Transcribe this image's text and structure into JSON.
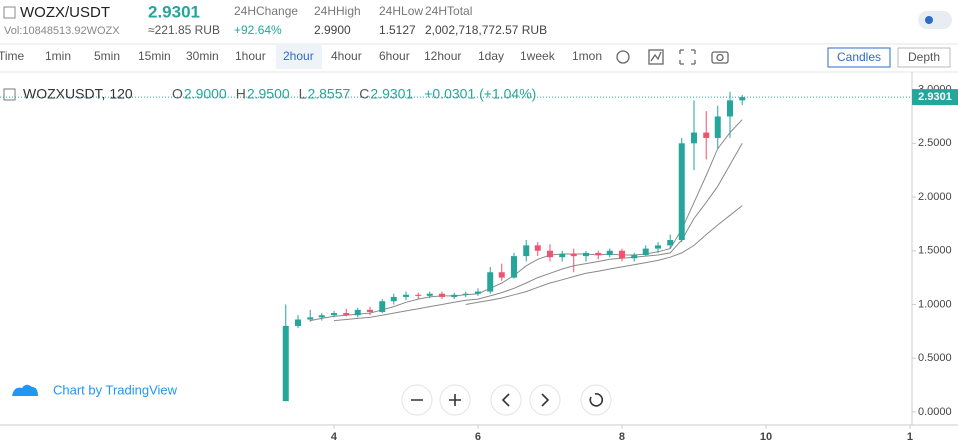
{
  "header": {
    "pair": "WOZX/USDT",
    "price": "2.9301",
    "volume": "Vol:10848513.92WOZX",
    "price_rub": "≈221.85 RUB",
    "stats": [
      {
        "label": "24HChange",
        "value": "+92.64%"
      },
      {
        "label": "24HHigh",
        "value": "2.9900"
      },
      {
        "label": "24HLow",
        "value": "1.5127"
      },
      {
        "label": "24HTotal",
        "value": "2,002,718,772.57 RUB"
      }
    ]
  },
  "toolbar": {
    "intervals": [
      "Time",
      "1min",
      "5min",
      "15min",
      "30min",
      "1hour",
      "2hour",
      "4hour",
      "6hour",
      "12hour",
      "1day",
      "1week",
      "1mon"
    ],
    "buttons": [
      "Candles",
      "Depth"
    ]
  },
  "chart_data": {
    "type": "candlestick",
    "legend": {
      "symbol": "WOZXUSDT, 120",
      "items": [
        {
          "key": "O",
          "value": "2.9000"
        },
        {
          "key": "H",
          "value": "2.9500"
        },
        {
          "key": "L",
          "value": "2.8557"
        },
        {
          "key": "C",
          "value": "2.9301"
        }
      ],
      "change": "+0.0301 (+1.04%)"
    },
    "up_color": "#26a69a",
    "down_color": "#ef5370",
    "x": [
      3.33,
      3.5,
      3.67,
      3.83,
      4,
      4.17,
      4.33,
      4.5,
      4.67,
      4.83,
      5,
      5.17,
      5.33,
      5.5,
      5.67,
      5.83,
      6,
      6.17,
      6.33,
      6.5,
      6.67,
      6.83,
      7,
      7.17,
      7.33,
      7.5,
      7.67,
      7.83,
      8,
      8.17,
      8.33,
      8.5,
      8.67,
      8.83,
      9,
      9.17,
      9.33,
      9.5,
      9.67
    ],
    "open": [
      0.1,
      0.8,
      0.86,
      0.88,
      0.9,
      0.92,
      0.9,
      0.95,
      0.93,
      1.03,
      1.07,
      1.09,
      1.08,
      1.1,
      1.07,
      1.09,
      1.1,
      1.12,
      1.3,
      1.25,
      1.45,
      1.55,
      1.5,
      1.44,
      1.47,
      1.45,
      1.48,
      1.46,
      1.5,
      1.43,
      1.46,
      1.52,
      1.55,
      1.6,
      2.5,
      2.6,
      2.55,
      2.75,
      2.9
    ],
    "high": [
      1.0,
      0.9,
      0.95,
      0.92,
      0.94,
      0.96,
      0.97,
      0.98,
      1.05,
      1.1,
      1.12,
      1.11,
      1.12,
      1.12,
      1.11,
      1.12,
      1.15,
      1.35,
      1.38,
      1.48,
      1.6,
      1.58,
      1.56,
      1.5,
      1.52,
      1.5,
      1.5,
      1.52,
      1.52,
      1.48,
      1.55,
      1.58,
      1.65,
      2.55,
      2.9,
      2.8,
      2.85,
      2.98,
      2.95
    ],
    "low": [
      0.1,
      0.78,
      0.84,
      0.85,
      0.88,
      0.89,
      0.88,
      0.9,
      0.92,
      1.0,
      1.04,
      1.05,
      1.06,
      1.05,
      1.05,
      1.07,
      1.08,
      1.1,
      1.22,
      1.24,
      1.4,
      1.45,
      1.4,
      1.4,
      1.3,
      1.4,
      1.42,
      1.44,
      1.4,
      1.4,
      1.45,
      1.48,
      1.52,
      1.58,
      2.25,
      2.35,
      2.45,
      2.55,
      2.8557
    ],
    "close": [
      0.8,
      0.86,
      0.88,
      0.9,
      0.92,
      0.9,
      0.95,
      0.93,
      1.03,
      1.07,
      1.09,
      1.08,
      1.1,
      1.07,
      1.09,
      1.1,
      1.12,
      1.3,
      1.25,
      1.45,
      1.55,
      1.5,
      1.44,
      1.47,
      1.45,
      1.48,
      1.46,
      1.5,
      1.43,
      1.46,
      1.52,
      1.55,
      1.6,
      2.5,
      2.6,
      2.55,
      2.75,
      2.9,
      2.9301
    ],
    "moving_averages": [
      {
        "color": "#8a8a8a",
        "values": [
          null,
          null,
          0.85,
          0.87,
          0.89,
          0.9,
          0.91,
          0.92,
          0.95,
          0.98,
          1.02,
          1.05,
          1.07,
          1.08,
          1.08,
          1.09,
          1.1,
          1.15,
          1.2,
          1.27,
          1.36,
          1.42,
          1.46,
          1.47,
          1.47,
          1.47,
          1.46,
          1.47,
          1.46,
          1.46,
          1.47,
          1.49,
          1.52,
          1.7,
          1.95,
          2.2,
          2.45,
          2.6,
          2.72
        ]
      },
      {
        "color": "#8a8a8a",
        "values": [
          null,
          null,
          null,
          null,
          0.85,
          0.86,
          0.87,
          0.88,
          0.9,
          0.92,
          0.94,
          0.96,
          0.98,
          1.0,
          1.02,
          1.04,
          1.05,
          1.08,
          1.11,
          1.15,
          1.2,
          1.25,
          1.29,
          1.33,
          1.36,
          1.38,
          1.4,
          1.42,
          1.43,
          1.44,
          1.45,
          1.46,
          1.48,
          1.6,
          1.8,
          1.95,
          2.1,
          2.3,
          2.5
        ]
      },
      {
        "color": "#8a8a8a",
        "values": [
          null,
          null,
          null,
          null,
          null,
          null,
          null,
          null,
          null,
          null,
          null,
          null,
          null,
          null,
          null,
          1.0,
          1.02,
          1.04,
          1.06,
          1.09,
          1.12,
          1.16,
          1.2,
          1.23,
          1.26,
          1.29,
          1.31,
          1.33,
          1.35,
          1.37,
          1.39,
          1.41,
          1.44,
          1.48,
          1.55,
          1.65,
          1.74,
          1.83,
          1.92
        ]
      }
    ],
    "last_price_label": "2.9301",
    "xlim": [
      -0.639,
      12.028
    ],
    "xticks": [
      4,
      6,
      8,
      10,
      {
        "value": 12,
        "label": "1"
      }
    ],
    "ylim": [
      -0.122,
      3.108
    ],
    "yticks": [
      {
        "value": 0,
        "label": "0.0000"
      },
      {
        "value": 0.5,
        "label": "0.5000"
      },
      {
        "value": 1,
        "label": "1.0000"
      },
      {
        "value": 1.5,
        "label": "1.5000"
      },
      {
        "value": 2,
        "label": "2.0000"
      },
      {
        "value": 2.5,
        "label": "2.5000"
      },
      {
        "value": 3,
        "label": "3.0000"
      }
    ]
  },
  "footer": {
    "branding": "Chart by TradingView"
  }
}
